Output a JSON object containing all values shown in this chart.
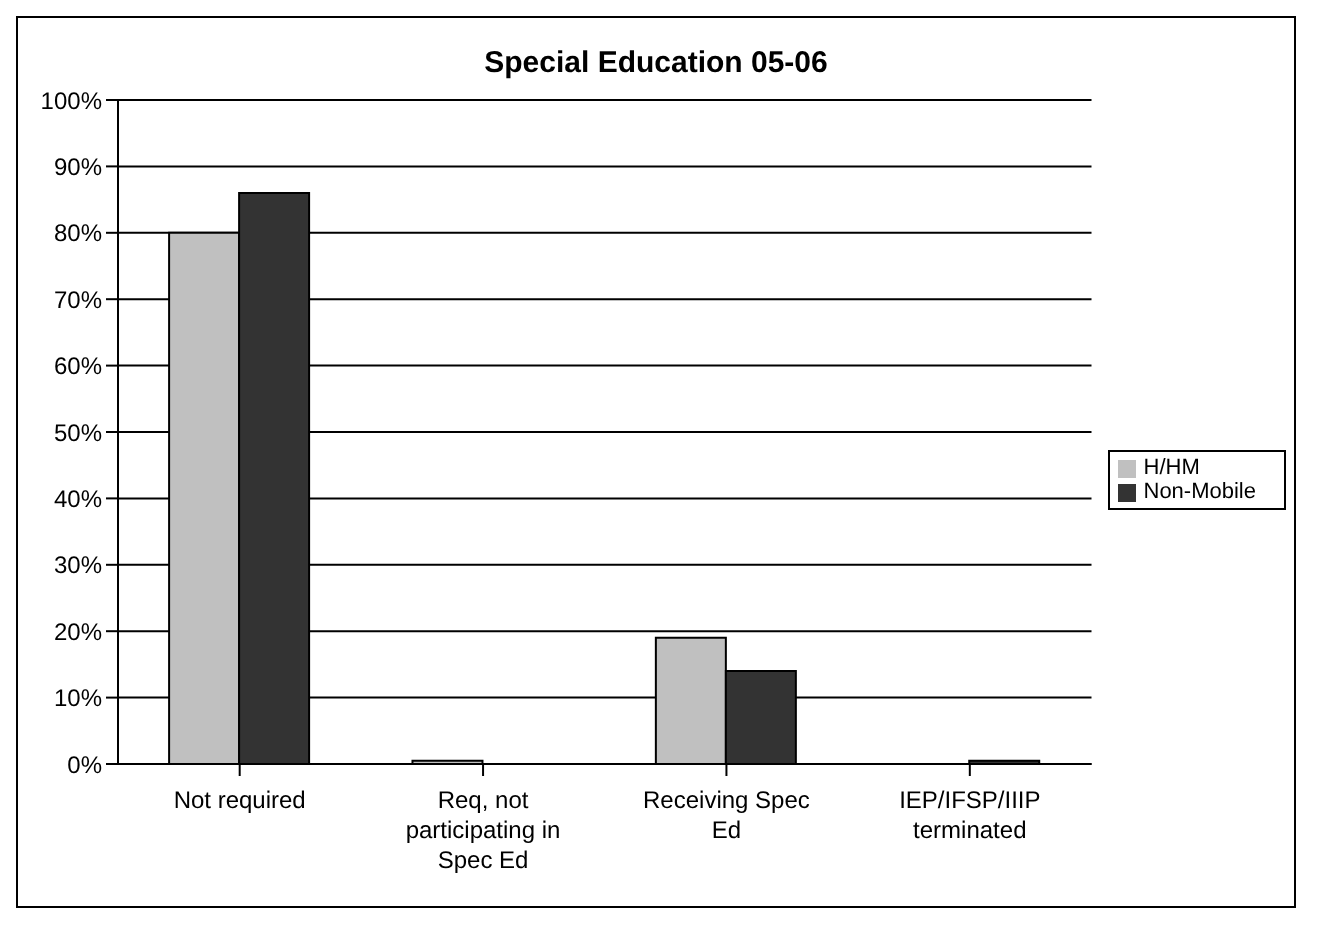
{
  "chart_data": {
    "type": "bar",
    "title": "Special Education 05-06",
    "categories": [
      "Not required",
      "Req, not participating in Spec Ed",
      "Receiving Spec Ed",
      "IEP/IFSP/IIIP terminated"
    ],
    "series": [
      {
        "name": "H/HM",
        "color": "#c0c0c0",
        "values": [
          80,
          0.5,
          19,
          0
        ]
      },
      {
        "name": "Non-Mobile",
        "color": "#333333",
        "values": [
          86,
          0,
          14,
          0.5
        ]
      }
    ],
    "ylim": [
      0,
      100
    ],
    "yticks": [
      {
        "value": 0,
        "label": "0%"
      },
      {
        "value": 10,
        "label": "10%"
      },
      {
        "value": 20,
        "label": "20%"
      },
      {
        "value": 30,
        "label": "30%"
      },
      {
        "value": 40,
        "label": "40%"
      },
      {
        "value": 50,
        "label": "50%"
      },
      {
        "value": 60,
        "label": "60%"
      },
      {
        "value": 70,
        "label": "70%"
      },
      {
        "value": 80,
        "label": "80%"
      },
      {
        "value": 90,
        "label": "90%"
      },
      {
        "value": 100,
        "label": "100%"
      }
    ],
    "grid": "y",
    "legend": "right"
  }
}
